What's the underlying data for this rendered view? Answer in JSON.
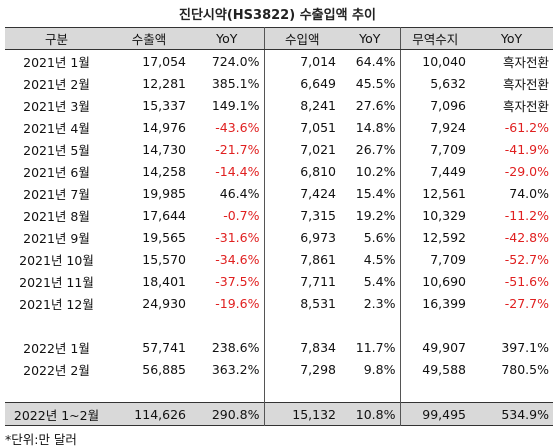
{
  "title": "진단시약(HS3822) 수출입액 추이",
  "table": {
    "header": [
      "구분",
      "수출액",
      "YoY",
      "수입액",
      "YoY",
      "무역수지",
      "YoY"
    ],
    "rows": [
      [
        "2021년 1월",
        "17,054",
        "724.0%",
        "7,014",
        "64.4%",
        "10,040",
        "흑자전환"
      ],
      [
        "2021년 2월",
        "12,281",
        "385.1%",
        "6,649",
        "45.5%",
        "5,632",
        "흑자전환"
      ],
      [
        "2021년 3월",
        "15,337",
        "149.1%",
        "8,241",
        "27.6%",
        "7,096",
        "흑자전환"
      ],
      [
        "2021년 4월",
        "14,976",
        "-43.6%",
        "7,051",
        "14.8%",
        "7,924",
        "-61.2%"
      ],
      [
        "2021년 5월",
        "14,730",
        "-21.7%",
        "7,021",
        "26.7%",
        "7,709",
        "-41.9%"
      ],
      [
        "2021년 6월",
        "14,258",
        "-14.4%",
        "6,810",
        "10.2%",
        "7,449",
        "-29.0%"
      ],
      [
        "2021년 7월",
        "19,985",
        "46.4%",
        "7,424",
        "15.4%",
        "12,561",
        "74.0%"
      ],
      [
        "2021년 8월",
        "17,644",
        "-0.7%",
        "7,315",
        "19.2%",
        "10,329",
        "-11.2%"
      ],
      [
        "2021년 9월",
        "19,565",
        "-31.6%",
        "6,973",
        "5.6%",
        "12,592",
        "-42.8%"
      ],
      [
        "2021년 10월",
        "15,570",
        "-34.6%",
        "7,861",
        "4.5%",
        "7,709",
        "-52.7%"
      ],
      [
        "2021년 11월",
        "18,401",
        "-37.5%",
        "7,711",
        "5.4%",
        "10,690",
        "-51.6%"
      ],
      [
        "2021년 12월",
        "24,930",
        "-19.6%",
        "8,531",
        "2.3%",
        "16,399",
        "-27.7%"
      ],
      [
        "2022년 1월",
        "57,741",
        "238.6%",
        "7,834",
        "11.7%",
        "49,907",
        "397.1%"
      ],
      [
        "2022년 2월",
        "56,885",
        "363.2%",
        "7,298",
        "9.8%",
        "49,588",
        "780.5%"
      ]
    ],
    "total": [
      "2022년 1~2월",
      "114,626",
      "290.8%",
      "15,132",
      "10.8%",
      "99,495",
      "534.9%"
    ]
  },
  "footnote": "*단위:만 달러"
}
